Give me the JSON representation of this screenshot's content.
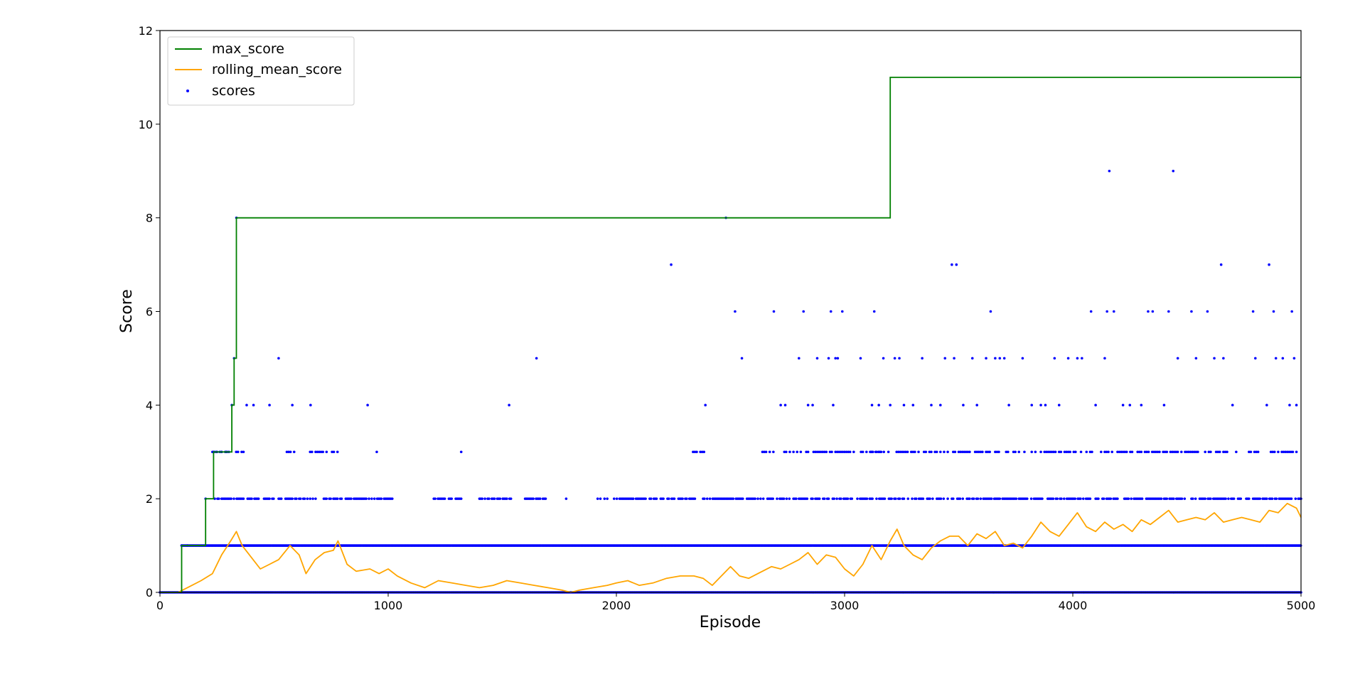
{
  "chart_data": {
    "type": "line",
    "title": "",
    "xlabel": "Episode",
    "ylabel": "Score",
    "xlim": [
      0,
      5000
    ],
    "ylim": [
      0,
      12
    ],
    "xticks": [
      0,
      1000,
      2000,
      3000,
      4000,
      5000
    ],
    "yticks": [
      0,
      2,
      4,
      6,
      8,
      10,
      12
    ],
    "grid": false,
    "legend": {
      "placement": "top-left",
      "entries": [
        {
          "label": "max_score",
          "kind": "line",
          "color": "#008000"
        },
        {
          "label": "rolling_mean_score",
          "kind": "line",
          "color": "#FFA500"
        },
        {
          "label": "scores",
          "kind": "marker",
          "color": "#0000FF"
        }
      ]
    },
    "series": [
      {
        "name": "max_score",
        "style": "step",
        "color": "#008000",
        "points": [
          [
            0,
            0
          ],
          [
            95,
            0
          ],
          [
            95,
            1
          ],
          [
            200,
            1
          ],
          [
            200,
            2
          ],
          [
            235,
            2
          ],
          [
            235,
            3
          ],
          [
            315,
            3
          ],
          [
            315,
            4
          ],
          [
            325,
            4
          ],
          [
            325,
            5
          ],
          [
            335,
            5
          ],
          [
            335,
            8
          ],
          [
            3200,
            8
          ],
          [
            3200,
            11
          ],
          [
            5000,
            11
          ]
        ]
      },
      {
        "name": "rolling_mean_score",
        "style": "line",
        "color": "#FFA500",
        "points": [
          [
            0,
            0
          ],
          [
            80,
            0
          ],
          [
            120,
            0.1
          ],
          [
            180,
            0.25
          ],
          [
            230,
            0.4
          ],
          [
            270,
            0.8
          ],
          [
            310,
            1.1
          ],
          [
            335,
            1.3
          ],
          [
            360,
            1.0
          ],
          [
            400,
            0.75
          ],
          [
            440,
            0.5
          ],
          [
            480,
            0.6
          ],
          [
            520,
            0.7
          ],
          [
            570,
            1.0
          ],
          [
            610,
            0.8
          ],
          [
            640,
            0.4
          ],
          [
            680,
            0.7
          ],
          [
            720,
            0.85
          ],
          [
            760,
            0.9
          ],
          [
            780,
            1.1
          ],
          [
            820,
            0.6
          ],
          [
            860,
            0.45
          ],
          [
            920,
            0.5
          ],
          [
            960,
            0.4
          ],
          [
            1000,
            0.5
          ],
          [
            1040,
            0.35
          ],
          [
            1100,
            0.2
          ],
          [
            1160,
            0.1
          ],
          [
            1220,
            0.25
          ],
          [
            1280,
            0.2
          ],
          [
            1340,
            0.15
          ],
          [
            1400,
            0.1
          ],
          [
            1460,
            0.15
          ],
          [
            1520,
            0.25
          ],
          [
            1580,
            0.2
          ],
          [
            1640,
            0.15
          ],
          [
            1700,
            0.1
          ],
          [
            1760,
            0.05
          ],
          [
            1800,
            0.0
          ],
          [
            1840,
            0.05
          ],
          [
            1900,
            0.1
          ],
          [
            1960,
            0.15
          ],
          [
            2000,
            0.2
          ],
          [
            2050,
            0.25
          ],
          [
            2100,
            0.15
          ],
          [
            2160,
            0.2
          ],
          [
            2220,
            0.3
          ],
          [
            2280,
            0.35
          ],
          [
            2340,
            0.35
          ],
          [
            2380,
            0.3
          ],
          [
            2420,
            0.15
          ],
          [
            2460,
            0.35
          ],
          [
            2500,
            0.55
          ],
          [
            2540,
            0.35
          ],
          [
            2580,
            0.3
          ],
          [
            2620,
            0.4
          ],
          [
            2680,
            0.55
          ],
          [
            2720,
            0.5
          ],
          [
            2760,
            0.6
          ],
          [
            2800,
            0.7
          ],
          [
            2840,
            0.85
          ],
          [
            2880,
            0.6
          ],
          [
            2920,
            0.8
          ],
          [
            2960,
            0.75
          ],
          [
            3000,
            0.5
          ],
          [
            3040,
            0.35
          ],
          [
            3080,
            0.6
          ],
          [
            3120,
            1.0
          ],
          [
            3160,
            0.7
          ],
          [
            3200,
            1.1
          ],
          [
            3230,
            1.35
          ],
          [
            3260,
            1.0
          ],
          [
            3300,
            0.8
          ],
          [
            3340,
            0.7
          ],
          [
            3380,
            0.95
          ],
          [
            3420,
            1.1
          ],
          [
            3460,
            1.2
          ],
          [
            3500,
            1.2
          ],
          [
            3540,
            1.0
          ],
          [
            3580,
            1.25
          ],
          [
            3620,
            1.15
          ],
          [
            3660,
            1.3
          ],
          [
            3700,
            1.0
          ],
          [
            3740,
            1.05
          ],
          [
            3780,
            0.95
          ],
          [
            3820,
            1.2
          ],
          [
            3860,
            1.5
          ],
          [
            3900,
            1.3
          ],
          [
            3940,
            1.2
          ],
          [
            3980,
            1.45
          ],
          [
            4020,
            1.7
          ],
          [
            4060,
            1.4
          ],
          [
            4100,
            1.3
          ],
          [
            4140,
            1.5
          ],
          [
            4180,
            1.35
          ],
          [
            4220,
            1.45
          ],
          [
            4260,
            1.3
          ],
          [
            4300,
            1.55
          ],
          [
            4340,
            1.45
          ],
          [
            4380,
            1.6
          ],
          [
            4420,
            1.75
          ],
          [
            4460,
            1.5
          ],
          [
            4500,
            1.55
          ],
          [
            4540,
            1.6
          ],
          [
            4580,
            1.55
          ],
          [
            4620,
            1.7
          ],
          [
            4660,
            1.5
          ],
          [
            4700,
            1.55
          ],
          [
            4740,
            1.6
          ],
          [
            4780,
            1.55
          ],
          [
            4820,
            1.5
          ],
          [
            4860,
            1.75
          ],
          [
            4900,
            1.7
          ],
          [
            4940,
            1.9
          ],
          [
            4980,
            1.8
          ],
          [
            5000,
            1.6
          ]
        ]
      },
      {
        "name": "scores",
        "style": "scatter",
        "color": "#0000FF",
        "baseline_levels": [
          0,
          1
        ],
        "level2_ranges": [
          [
            240,
            500
          ],
          [
            520,
            1020
          ],
          [
            1200,
            1320
          ],
          [
            1400,
            1560
          ],
          [
            1600,
            1700
          ],
          [
            1900,
            2350
          ],
          [
            2380,
            2900
          ],
          [
            2900,
            5000
          ]
        ],
        "level3_ranges": [
          [
            230,
            380
          ],
          [
            540,
            590
          ],
          [
            650,
            790
          ],
          [
            2320,
            2400
          ],
          [
            2640,
            3200
          ],
          [
            3100,
            5000
          ]
        ],
        "points": [
          [
            95,
            1
          ],
          [
            120,
            1
          ],
          [
            200,
            2
          ],
          [
            235,
            3
          ],
          [
            250,
            3
          ],
          [
            270,
            3
          ],
          [
            290,
            3
          ],
          [
            315,
            4
          ],
          [
            325,
            5
          ],
          [
            335,
            8
          ],
          [
            380,
            4
          ],
          [
            410,
            4
          ],
          [
            480,
            4
          ],
          [
            520,
            5
          ],
          [
            580,
            4
          ],
          [
            660,
            4
          ],
          [
            910,
            4
          ],
          [
            950,
            3
          ],
          [
            1320,
            3
          ],
          [
            1530,
            4
          ],
          [
            1650,
            5
          ],
          [
            1780,
            2
          ],
          [
            2240,
            7
          ],
          [
            2390,
            4
          ],
          [
            2480,
            8
          ],
          [
            2520,
            6
          ],
          [
            2550,
            5
          ],
          [
            2690,
            6
          ],
          [
            2720,
            4
          ],
          [
            2740,
            4
          ],
          [
            2800,
            5
          ],
          [
            2820,
            6
          ],
          [
            2840,
            4
          ],
          [
            2860,
            4
          ],
          [
            2880,
            5
          ],
          [
            2930,
            5
          ],
          [
            2940,
            6
          ],
          [
            2950,
            4
          ],
          [
            2960,
            5
          ],
          [
            2970,
            5
          ],
          [
            2990,
            6
          ],
          [
            3070,
            5
          ],
          [
            3120,
            4
          ],
          [
            3130,
            6
          ],
          [
            3150,
            4
          ],
          [
            3170,
            5
          ],
          [
            3200,
            4
          ],
          [
            3220,
            5
          ],
          [
            3240,
            5
          ],
          [
            3260,
            4
          ],
          [
            3300,
            4
          ],
          [
            3340,
            5
          ],
          [
            3380,
            4
          ],
          [
            3420,
            4
          ],
          [
            3440,
            5
          ],
          [
            3470,
            7
          ],
          [
            3490,
            7
          ],
          [
            3480,
            5
          ],
          [
            3520,
            4
          ],
          [
            3560,
            5
          ],
          [
            3580,
            4
          ],
          [
            3620,
            5
          ],
          [
            3640,
            6
          ],
          [
            3660,
            5
          ],
          [
            3680,
            5
          ],
          [
            3700,
            5
          ],
          [
            3720,
            4
          ],
          [
            3780,
            5
          ],
          [
            3820,
            4
          ],
          [
            3860,
            4
          ],
          [
            3880,
            4
          ],
          [
            3920,
            5
          ],
          [
            3940,
            4
          ],
          [
            3980,
            5
          ],
          [
            4020,
            5
          ],
          [
            4040,
            5
          ],
          [
            4080,
            6
          ],
          [
            4100,
            4
          ],
          [
            4140,
            5
          ],
          [
            4150,
            6
          ],
          [
            4160,
            9
          ],
          [
            4180,
            6
          ],
          [
            4220,
            4
          ],
          [
            4250,
            4
          ],
          [
            4300,
            4
          ],
          [
            4330,
            6
          ],
          [
            4350,
            6
          ],
          [
            4400,
            4
          ],
          [
            4420,
            6
          ],
          [
            4440,
            9
          ],
          [
            4460,
            5
          ],
          [
            4520,
            6
          ],
          [
            4540,
            5
          ],
          [
            4590,
            6
          ],
          [
            4620,
            5
          ],
          [
            4650,
            7
          ],
          [
            4660,
            5
          ],
          [
            4700,
            4
          ],
          [
            4790,
            6
          ],
          [
            4800,
            5
          ],
          [
            4850,
            4
          ],
          [
            4860,
            7
          ],
          [
            4880,
            6
          ],
          [
            4890,
            5
          ],
          [
            4920,
            5
          ],
          [
            4950,
            4
          ],
          [
            4960,
            6
          ],
          [
            4970,
            5
          ],
          [
            4980,
            4
          ]
        ]
      }
    ]
  }
}
